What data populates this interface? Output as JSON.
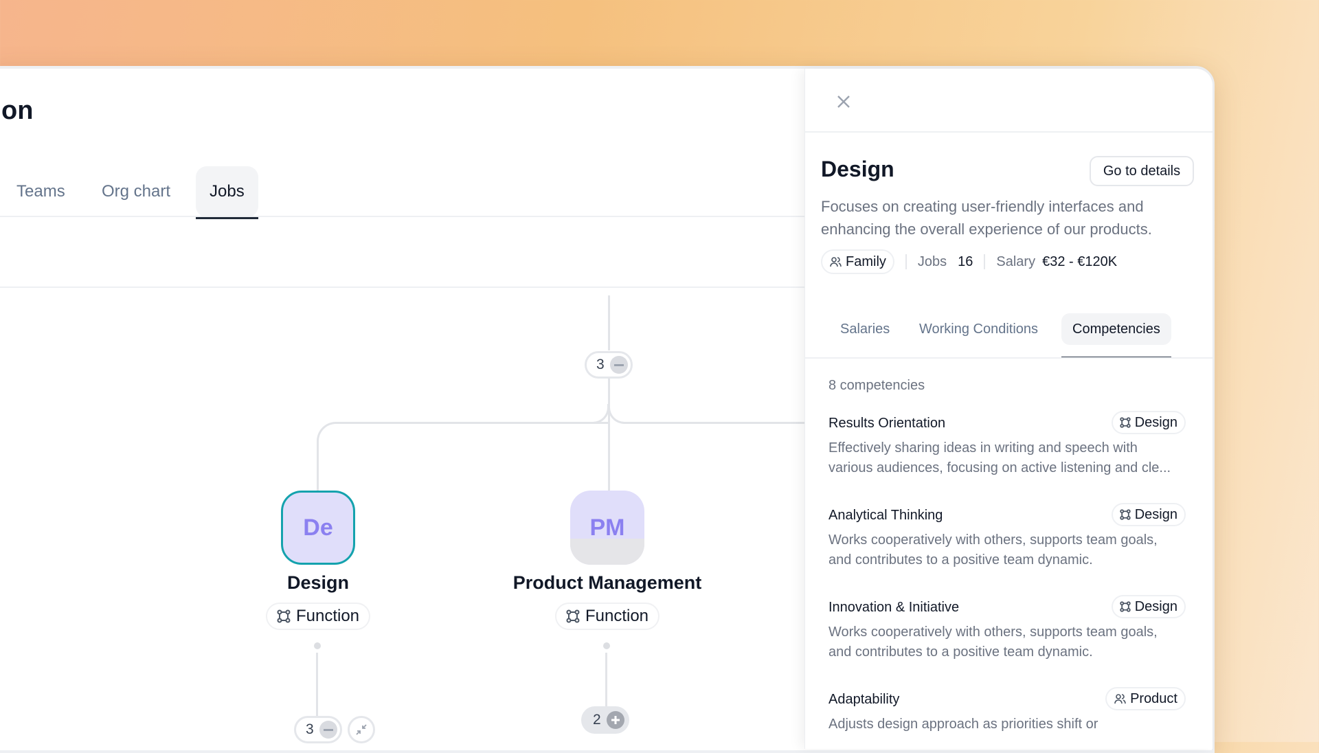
{
  "page": {
    "title_fragment": "on",
    "tabs": [
      {
        "label": "Teams"
      },
      {
        "label": "Org chart"
      },
      {
        "label": "Jobs",
        "active": true
      }
    ]
  },
  "tree": {
    "root_badge": {
      "count": "3",
      "state": "expanded"
    },
    "nodes": [
      {
        "initials": "De",
        "name": "Design",
        "type": "Function",
        "selected": true,
        "badge": {
          "count": "3",
          "state": "expanded"
        }
      },
      {
        "initials": "PM",
        "name": "Product Management",
        "type": "Function",
        "selected": false,
        "badge": {
          "count": "2",
          "state": "collapsed"
        }
      }
    ]
  },
  "panel": {
    "title": "Design",
    "go_to_details": "Go to details",
    "description": "Focuses on creating user-friendly interfaces and enhancing the overall experience of our products.",
    "family_label": "Family",
    "jobs_label": "Jobs",
    "jobs_value": "16",
    "salary_label": "Salary",
    "salary_value": "€32 - €120K",
    "tabs": [
      {
        "label": "Salaries"
      },
      {
        "label": "Working Conditions"
      },
      {
        "label": "Competencies",
        "active": true
      }
    ],
    "competency_count": "8 competencies",
    "competencies": [
      {
        "name": "Results Orientation",
        "tag": "Design",
        "tag_icon": "function-icon",
        "description": [
          "Effectively sharing ideas in writing and speech with",
          "various audiences, focusing on active listening and cle..."
        ]
      },
      {
        "name": "Analytical Thinking",
        "tag": "Design",
        "tag_icon": "function-icon",
        "description": [
          "Works cooperatively with others, supports team goals,",
          "and contributes to a positive team dynamic."
        ]
      },
      {
        "name": "Innovation & Initiative",
        "tag": "Design",
        "tag_icon": "function-icon",
        "description": [
          "Works cooperatively with others, supports team goals,",
          "and contributes to a positive team dynamic."
        ]
      },
      {
        "name": "Adaptability",
        "tag": "Product",
        "tag_icon": "family-icon",
        "description": [
          "Adjusts design approach as priorities shift or",
          ""
        ]
      }
    ]
  },
  "colors": {
    "selected_node_border": "#14a2ad",
    "node_bg": "#e0defa",
    "node_text": "#8b80f0"
  }
}
